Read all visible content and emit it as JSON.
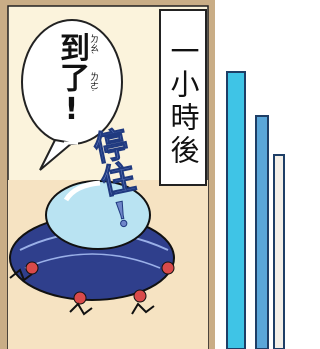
{
  "caption": "一小時後",
  "speech_bubble": {
    "text": "到了!",
    "phonetic": "ㄉㄠˋ ㄌㄜ˙"
  },
  "sound_effect": "停住!"
}
